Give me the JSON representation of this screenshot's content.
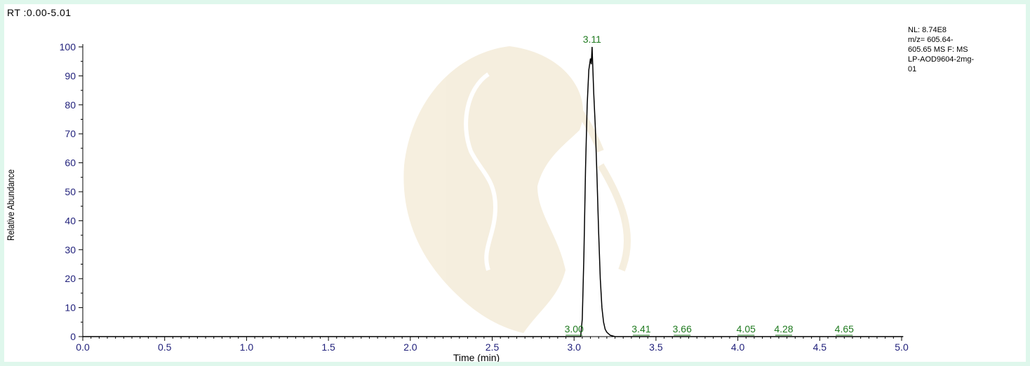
{
  "header": {
    "range_label": "RT :0.00-5.01"
  },
  "info_box": {
    "lines": [
      "NL: 8.74E8",
      "m/z= 605.64-",
      "605.65 MS  F: MS",
      "LP-AOD9604-2mg-",
      "01"
    ]
  },
  "colors": {
    "trace": "#000000",
    "tick_labels": "#1f1f7a",
    "peak_labels": "#1f7a1f",
    "background": "#dff7ec"
  },
  "chart_data": {
    "type": "line",
    "title": "",
    "xlabel": "Time (min)",
    "ylabel": "Relative Abundance",
    "xlim": [
      0.0,
      5.0
    ],
    "ylim": [
      0,
      100
    ],
    "x_ticks": [
      "0.0",
      "0.5",
      "1.0",
      "1.5",
      "2.0",
      "2.5",
      "3.0",
      "3.5",
      "4.0",
      "4.5",
      "5.0"
    ],
    "x_tick_values": [
      0.0,
      0.5,
      1.0,
      1.5,
      2.0,
      2.5,
      3.0,
      3.5,
      4.0,
      4.5,
      5.0
    ],
    "y_ticks": [
      "0",
      "10",
      "20",
      "30",
      "40",
      "50",
      "60",
      "70",
      "80",
      "90",
      "100"
    ],
    "y_tick_values": [
      0,
      10,
      20,
      30,
      40,
      50,
      60,
      70,
      80,
      90,
      100
    ],
    "grid": false,
    "series": [
      {
        "x": [
          0.0,
          3.04,
          3.05,
          3.06,
          3.07,
          3.08,
          3.09,
          3.1,
          3.105,
          3.11,
          3.115,
          3.12,
          3.13,
          3.14,
          3.15,
          3.16,
          3.17,
          3.18,
          3.19,
          3.2,
          3.22,
          3.25,
          5.01
        ],
        "y": [
          0,
          0,
          6,
          28,
          58,
          80,
          92,
          96,
          94,
          100,
          92,
          84,
          72,
          55,
          36,
          20,
          10,
          5,
          2.5,
          1.5,
          0.5,
          0,
          0
        ]
      }
    ],
    "peak_annotations": [
      {
        "x": 3.11,
        "y": 100,
        "label": "3.11"
      },
      {
        "x": 3.0,
        "y": 0.3,
        "label": "3.00"
      },
      {
        "x": 3.41,
        "y": 0.3,
        "label": "3.41"
      },
      {
        "x": 3.66,
        "y": 0.3,
        "label": "3.66"
      },
      {
        "x": 4.05,
        "y": 0.3,
        "label": "4.05"
      },
      {
        "x": 4.28,
        "y": 0.3,
        "label": "4.28"
      },
      {
        "x": 4.65,
        "y": 0.3,
        "label": "4.65"
      }
    ]
  }
}
